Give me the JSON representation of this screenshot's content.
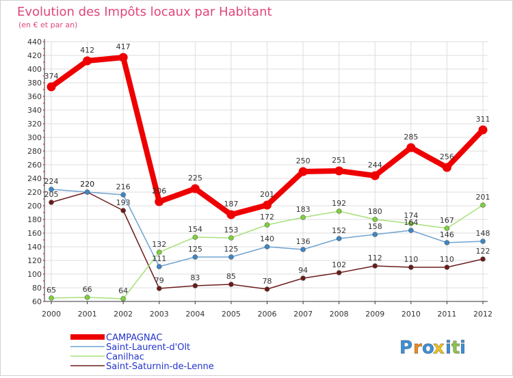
{
  "chart_data": {
    "type": "line",
    "title": "Evolution des Impôts locaux par Habitant",
    "subtitle": "(en € et par an)",
    "xlabel": "",
    "ylabel": "",
    "ylim": [
      60,
      440
    ],
    "y_ticks": [
      60,
      80,
      100,
      120,
      140,
      160,
      180,
      200,
      220,
      240,
      260,
      280,
      300,
      320,
      340,
      360,
      380,
      400,
      420,
      440
    ],
    "x": [
      "2000",
      "2001",
      "2002",
      "2003",
      "2004",
      "2005",
      "2006",
      "2007",
      "2008",
      "2009",
      "2010",
      "2011",
      "2012"
    ],
    "grid": true,
    "legend_position": "bottom-left",
    "series": [
      {
        "name": "Saint-Saturnin-de-Lenne",
        "color": "#6b1a1a",
        "dot": "#6b1a1a",
        "emphasis": false,
        "values": [
          205,
          220,
          193,
          79,
          83,
          85,
          78,
          94,
          102,
          112,
          110,
          110,
          122
        ]
      },
      {
        "name": "Canilhac",
        "color": "#a8e07a",
        "dot": "#7bd23c",
        "emphasis": false,
        "values": [
          65,
          66,
          64,
          132,
          154,
          153,
          172,
          183,
          192,
          180,
          174,
          167,
          201
        ]
      },
      {
        "name": "Saint-Laurent-d'Olt",
        "color": "#6fa3d0",
        "dot": "#3d86c8",
        "emphasis": false,
        "values": [
          224,
          220,
          216,
          111,
          125,
          125,
          140,
          136,
          152,
          158,
          164,
          146,
          148
        ]
      },
      {
        "name": "CAMPAGNAC",
        "color": "#ee0000",
        "dot": "#ee0000",
        "emphasis": true,
        "values": [
          374,
          412,
          417,
          206,
          225,
          187,
          201,
          250,
          251,
          244,
          285,
          256,
          311
        ]
      }
    ],
    "legend_order": [
      "CAMPAGNAC",
      "Saint-Laurent-d'Olt",
      "Canilhac",
      "Saint-Saturnin-de-Lenne"
    ]
  },
  "branding": {
    "letters": [
      "P",
      "r",
      "o",
      "x",
      "i",
      "t",
      "i"
    ],
    "colors": [
      "#3a8fd6",
      "#f08a1c",
      "#3a8fd6",
      "#f0c21c",
      "#3a8fd6",
      "#8bc34a",
      "#3a8fd6"
    ]
  },
  "colors": {
    "title": "#e0457b",
    "axis": "#333333",
    "grid": "#dddddd",
    "legend_text": "#2233cc"
  }
}
